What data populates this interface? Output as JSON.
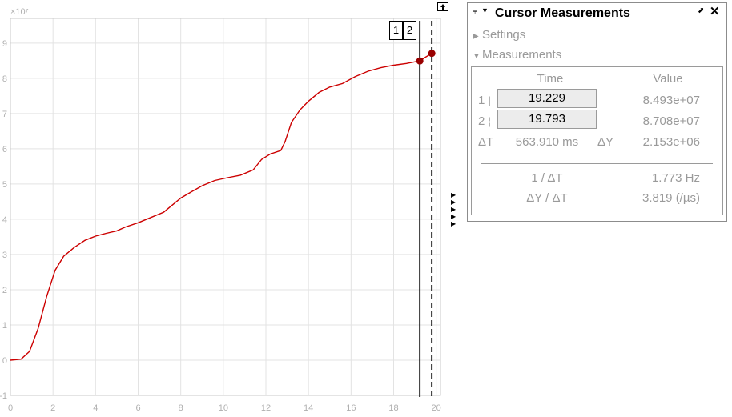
{
  "plot": {
    "exponent_label": "×10⁷",
    "y_ticks": [
      "-1",
      "0",
      "1",
      "2",
      "3",
      "4",
      "5",
      "6",
      "7",
      "8",
      "9"
    ],
    "x_ticks": [
      "0",
      "2",
      "4",
      "6",
      "8",
      "10",
      "12",
      "14",
      "16",
      "18",
      "20"
    ],
    "cursor_tags": [
      "1",
      "2"
    ],
    "cursor_1_time": 19.229,
    "cursor_2_time": 19.793,
    "trace_color": "#cc0000",
    "cursor_point_color": "#990000",
    "trace_points": [
      [
        0,
        0
      ],
      [
        0.5,
        0.03
      ],
      [
        0.9,
        0.25
      ],
      [
        1.3,
        0.9
      ],
      [
        1.7,
        1.8
      ],
      [
        2.1,
        2.55
      ],
      [
        2.5,
        2.95
      ],
      [
        3.0,
        3.2
      ],
      [
        3.5,
        3.4
      ],
      [
        4.0,
        3.52
      ],
      [
        4.5,
        3.6
      ],
      [
        5.0,
        3.67
      ],
      [
        5.4,
        3.78
      ],
      [
        6.0,
        3.9
      ],
      [
        6.6,
        4.05
      ],
      [
        7.2,
        4.2
      ],
      [
        7.6,
        4.4
      ],
      [
        8.0,
        4.6
      ],
      [
        8.5,
        4.78
      ],
      [
        9.0,
        4.95
      ],
      [
        9.6,
        5.1
      ],
      [
        10.2,
        5.18
      ],
      [
        10.8,
        5.25
      ],
      [
        11.4,
        5.4
      ],
      [
        11.8,
        5.7
      ],
      [
        12.2,
        5.85
      ],
      [
        12.7,
        5.95
      ],
      [
        12.9,
        6.2
      ],
      [
        13.2,
        6.75
      ],
      [
        13.6,
        7.1
      ],
      [
        14.0,
        7.35
      ],
      [
        14.5,
        7.6
      ],
      [
        15.0,
        7.75
      ],
      [
        15.6,
        7.85
      ],
      [
        16.2,
        8.05
      ],
      [
        16.8,
        8.2
      ],
      [
        17.4,
        8.3
      ],
      [
        18.0,
        8.37
      ],
      [
        18.6,
        8.42
      ],
      [
        19.229,
        8.493
      ],
      [
        19.5,
        8.6
      ],
      [
        19.793,
        8.708
      ]
    ]
  },
  "panel": {
    "title": "Cursor Measurements",
    "settings_label": "Settings",
    "measurements_label": "Measurements",
    "col_time": "Time",
    "col_value": "Value",
    "row1_label": "1",
    "row1_time": "19.229",
    "row1_value": "8.493e+07",
    "row2_label": "2",
    "row2_time": "19.793",
    "row2_value": "8.708e+07",
    "delta_t_label": "ΔT",
    "delta_t_value": "563.910 ms",
    "delta_y_label": "ΔY",
    "delta_y_value": "2.153e+06",
    "inv_dt_label": "1 / ΔT",
    "inv_dt_value": "1.773 Hz",
    "dy_dt_label": "ΔY / ΔT",
    "dy_dt_value": "3.819 (/µs)"
  }
}
